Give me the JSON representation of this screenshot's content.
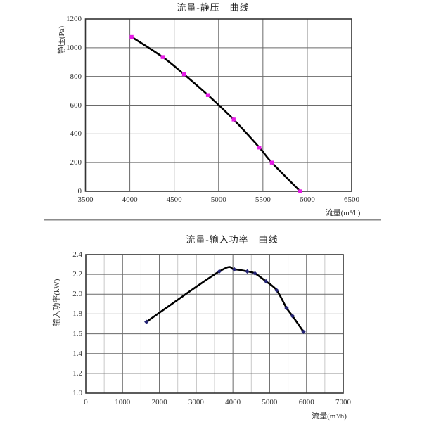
{
  "page": {
    "background": "#ffffff"
  },
  "colors": {
    "border": "#333333",
    "grid_major": "#6a6a6a",
    "grid_minor": "#c9c9c9",
    "text": "#333333"
  },
  "separator": {
    "style": "double-rule",
    "color": "#6e6e6e"
  },
  "chart_data": [
    {
      "type": "line",
      "title": "流量-静压　曲线",
      "xlabel": "流量(m³/h)",
      "ylabel": "静压(Pa)",
      "xlim": [
        3500,
        6500
      ],
      "ylim": [
        0,
        1200
      ],
      "xticks": [
        3500,
        4000,
        4500,
        5000,
        5500,
        6000,
        6500
      ],
      "xticklabels": [
        "3500",
        "4000",
        "4500",
        "5000",
        "5500",
        "6000",
        "6500"
      ],
      "yticks": [
        0,
        200,
        400,
        600,
        800,
        1000,
        1200
      ],
      "yticklabels": [
        "0",
        "200",
        "400",
        "600",
        "800",
        "1000",
        "1200"
      ],
      "grid": "major",
      "legend": "none",
      "line_color": "#000000",
      "marker": "square",
      "marker_color": "#e61ae6",
      "series": [
        {
          "name": "静压",
          "x": [
            4020,
            4370,
            4610,
            4880,
            5170,
            5460,
            5600,
            5920
          ],
          "y": [
            1075,
            935,
            815,
            670,
            500,
            305,
            200,
            0
          ]
        }
      ]
    },
    {
      "type": "line",
      "title": "流量-输入功率　曲线",
      "xlabel": "流量(m³/h)",
      "ylabel": "输入功率(kW)",
      "xlim": [
        0,
        7000
      ],
      "ylim": [
        1.0,
        2.4
      ],
      "xticks": [
        0,
        1000,
        2000,
        3000,
        4000,
        5000,
        6000,
        7000
      ],
      "xticklabels": [
        "0",
        "1000",
        "2000",
        "3000",
        "4000",
        "5000",
        "6000",
        "7000"
      ],
      "yticks": [
        1.0,
        1.2,
        1.4,
        1.6,
        1.8,
        2.0,
        2.2,
        2.4
      ],
      "yticklabels": [
        "1.0",
        "1.2",
        "1.4",
        "1.6",
        "1.8",
        "2.0",
        "2.2",
        "2.4"
      ],
      "minor_x_step": 500,
      "grid": "major+minor-x",
      "legend": "none",
      "line_color": "#000000",
      "marker": "diamond",
      "marker_color": "#252575",
      "series": [
        {
          "name": "输入功率",
          "x": [
            1650,
            3630,
            4040,
            4390,
            4600,
            4900,
            5190,
            5460,
            5620,
            5920
          ],
          "y": [
            1.72,
            2.23,
            2.25,
            2.23,
            2.21,
            2.13,
            2.04,
            1.86,
            1.78,
            1.62
          ]
        }
      ]
    }
  ]
}
